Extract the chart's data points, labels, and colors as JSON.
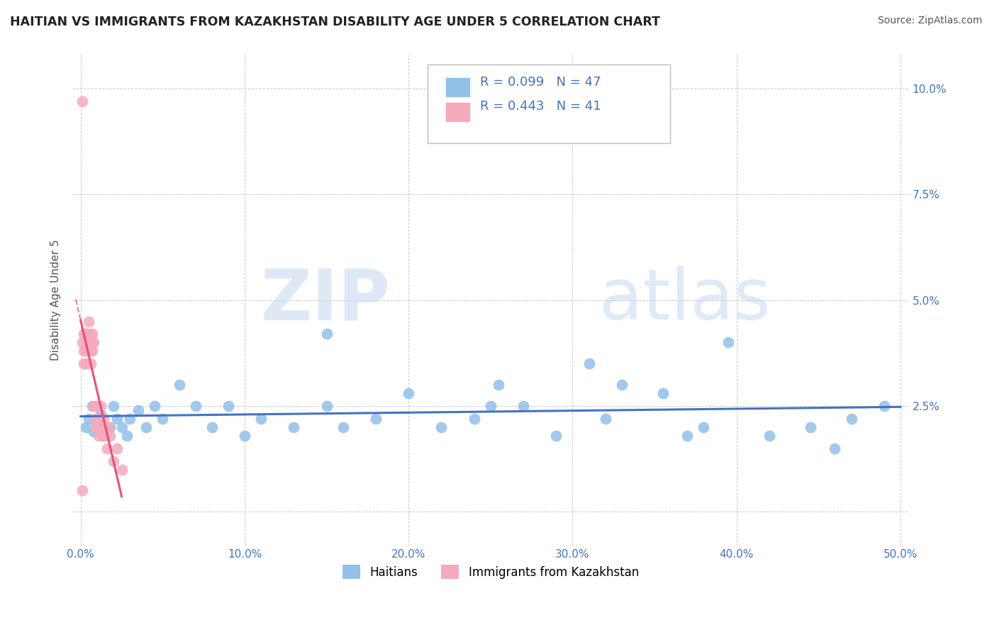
{
  "title": "HAITIAN VS IMMIGRANTS FROM KAZAKHSTAN DISABILITY AGE UNDER 5 CORRELATION CHART",
  "source": "Source: ZipAtlas.com",
  "ylabel": "Disability Age Under 5",
  "xlim": [
    -0.005,
    0.505
  ],
  "ylim": [
    -0.008,
    0.108
  ],
  "xticks": [
    0.0,
    0.1,
    0.2,
    0.3,
    0.4,
    0.5
  ],
  "xticklabels": [
    "0.0%",
    "10.0%",
    "20.0%",
    "30.0%",
    "40.0%",
    "50.0%"
  ],
  "yticks": [
    0.0,
    0.025,
    0.05,
    0.075,
    0.1
  ],
  "yticklabels_right": [
    "",
    "2.5%",
    "5.0%",
    "7.5%",
    "10.0%"
  ],
  "blue_color": "#92C0E8",
  "pink_color": "#F4AABB",
  "blue_line_color": "#4472C4",
  "pink_line_color": "#E8507A",
  "grid_color": "#BBBBBB",
  "watermark_zip": "ZIP",
  "watermark_atlas": "atlas",
  "legend_text": "R = 0.099   N = 47\nR = 0.443   N = 41",
  "legend_label1": "Haitians",
  "legend_label2": "Immigrants from Kazakhstan",
  "haitians_x": [
    0.003,
    0.005,
    0.007,
    0.008,
    0.01,
    0.012,
    0.015,
    0.018,
    0.02,
    0.022,
    0.025,
    0.028,
    0.03,
    0.035,
    0.04,
    0.045,
    0.05,
    0.06,
    0.07,
    0.08,
    0.09,
    0.1,
    0.11,
    0.13,
    0.15,
    0.16,
    0.18,
    0.2,
    0.22,
    0.24,
    0.255,
    0.27,
    0.29,
    0.31,
    0.33,
    0.355,
    0.37,
    0.395,
    0.42,
    0.445,
    0.47,
    0.49,
    0.15,
    0.25,
    0.32,
    0.38,
    0.46
  ],
  "haitians_y": [
    0.02,
    0.022,
    0.025,
    0.019,
    0.021,
    0.023,
    0.018,
    0.02,
    0.025,
    0.022,
    0.02,
    0.018,
    0.022,
    0.024,
    0.02,
    0.025,
    0.022,
    0.03,
    0.025,
    0.02,
    0.025,
    0.018,
    0.022,
    0.02,
    0.025,
    0.02,
    0.022,
    0.028,
    0.02,
    0.022,
    0.03,
    0.025,
    0.018,
    0.035,
    0.03,
    0.028,
    0.018,
    0.04,
    0.018,
    0.02,
    0.022,
    0.025,
    0.042,
    0.025,
    0.022,
    0.02,
    0.015
  ],
  "kazakhstan_x": [
    0.001,
    0.001,
    0.002,
    0.002,
    0.002,
    0.003,
    0.003,
    0.003,
    0.004,
    0.004,
    0.004,
    0.005,
    0.005,
    0.005,
    0.006,
    0.006,
    0.006,
    0.007,
    0.007,
    0.007,
    0.008,
    0.008,
    0.009,
    0.009,
    0.01,
    0.01,
    0.011,
    0.011,
    0.012,
    0.012,
    0.013,
    0.013,
    0.014,
    0.015,
    0.016,
    0.017,
    0.018,
    0.02,
    0.022,
    0.025,
    0.001
  ],
  "kazakhstan_y": [
    0.097,
    0.04,
    0.042,
    0.038,
    0.035,
    0.042,
    0.038,
    0.035,
    0.042,
    0.038,
    0.04,
    0.045,
    0.038,
    0.04,
    0.042,
    0.038,
    0.035,
    0.04,
    0.042,
    0.038,
    0.04,
    0.025,
    0.022,
    0.02,
    0.025,
    0.022,
    0.02,
    0.018,
    0.025,
    0.022,
    0.02,
    0.018,
    0.022,
    0.02,
    0.015,
    0.02,
    0.018,
    0.012,
    0.015,
    0.01,
    0.005
  ]
}
